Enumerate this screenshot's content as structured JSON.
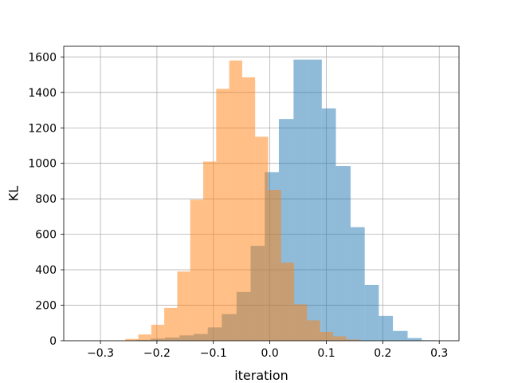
{
  "chart_data": {
    "type": "bar",
    "xlabel": "iteration",
    "ylabel": "KL",
    "xlim": [
      -0.365,
      0.335
    ],
    "ylim": [
      0,
      1660
    ],
    "xticks": [
      -0.3,
      -0.2,
      -0.1,
      0.0,
      0.1,
      0.2,
      0.3
    ],
    "yticks": [
      0,
      200,
      400,
      600,
      800,
      1000,
      1200,
      1400,
      1600
    ],
    "xtick_labels": [
      "−0.3",
      "−0.2",
      "−0.1",
      "0.0",
      "0.1",
      "0.2",
      "0.3"
    ],
    "ytick_labels": [
      "0",
      "200",
      "400",
      "600",
      "800",
      "1000",
      "1200",
      "1400",
      "1600"
    ],
    "grid": true,
    "series": [
      {
        "color": "#1f77b4",
        "opacity": 0.5,
        "bins": [
          {
            "x0": -0.236,
            "x1": -0.211,
            "count": 5
          },
          {
            "x0": -0.211,
            "x1": -0.186,
            "count": 12
          },
          {
            "x0": -0.186,
            "x1": -0.16,
            "count": 18
          },
          {
            "x0": -0.16,
            "x1": -0.135,
            "count": 30
          },
          {
            "x0": -0.135,
            "x1": -0.11,
            "count": 38
          },
          {
            "x0": -0.11,
            "x1": -0.085,
            "count": 75
          },
          {
            "x0": -0.085,
            "x1": -0.059,
            "count": 150
          },
          {
            "x0": -0.059,
            "x1": -0.034,
            "count": 275
          },
          {
            "x0": -0.034,
            "x1": -0.009,
            "count": 535
          },
          {
            "x0": -0.009,
            "x1": 0.016,
            "count": 950
          },
          {
            "x0": 0.016,
            "x1": 0.042,
            "count": 1250
          },
          {
            "x0": 0.042,
            "x1": 0.067,
            "count": 1585
          },
          {
            "x0": 0.067,
            "x1": 0.092,
            "count": 1585
          },
          {
            "x0": 0.092,
            "x1": 0.117,
            "count": 1310
          },
          {
            "x0": 0.117,
            "x1": 0.143,
            "count": 985
          },
          {
            "x0": 0.143,
            "x1": 0.168,
            "count": 640
          },
          {
            "x0": 0.168,
            "x1": 0.193,
            "count": 315
          },
          {
            "x0": 0.193,
            "x1": 0.218,
            "count": 140
          },
          {
            "x0": 0.218,
            "x1": 0.244,
            "count": 55
          },
          {
            "x0": 0.244,
            "x1": 0.269,
            "count": 15
          },
          {
            "x0": 0.269,
            "x1": 0.294,
            "count": 3
          }
        ]
      },
      {
        "color": "#ff7f0e",
        "opacity": 0.5,
        "bins": [
          {
            "x0": -0.256,
            "x1": -0.233,
            "count": 10
          },
          {
            "x0": -0.233,
            "x1": -0.21,
            "count": 35
          },
          {
            "x0": -0.21,
            "x1": -0.187,
            "count": 90
          },
          {
            "x0": -0.187,
            "x1": -0.164,
            "count": 185
          },
          {
            "x0": -0.164,
            "x1": -0.141,
            "count": 390
          },
          {
            "x0": -0.141,
            "x1": -0.118,
            "count": 795
          },
          {
            "x0": -0.118,
            "x1": -0.095,
            "count": 1010
          },
          {
            "x0": -0.095,
            "x1": -0.072,
            "count": 1420
          },
          {
            "x0": -0.072,
            "x1": -0.049,
            "count": 1580
          },
          {
            "x0": -0.049,
            "x1": -0.026,
            "count": 1485
          },
          {
            "x0": -0.026,
            "x1": -0.003,
            "count": 1150
          },
          {
            "x0": -0.003,
            "x1": 0.02,
            "count": 850
          },
          {
            "x0": 0.02,
            "x1": 0.043,
            "count": 440
          },
          {
            "x0": 0.043,
            "x1": 0.066,
            "count": 205
          },
          {
            "x0": 0.066,
            "x1": 0.089,
            "count": 115
          },
          {
            "x0": 0.089,
            "x1": 0.112,
            "count": 50
          },
          {
            "x0": 0.112,
            "x1": 0.135,
            "count": 25
          },
          {
            "x0": 0.135,
            "x1": 0.158,
            "count": 7
          }
        ]
      }
    ]
  }
}
